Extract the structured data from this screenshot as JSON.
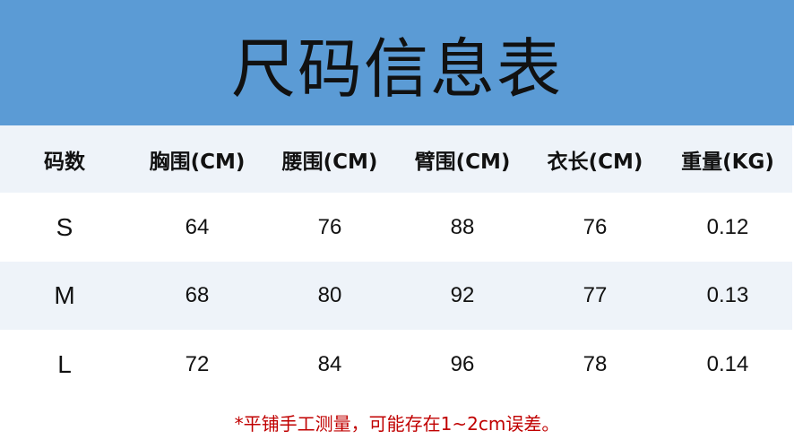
{
  "title": "尺码信息表",
  "colors": {
    "banner": "#5b9bd5",
    "stripe": "#eef3f9",
    "note": "#c00000"
  },
  "table": {
    "headers": [
      "码数",
      "胸围(CM)",
      "腰围(CM)",
      "臂围(CM)",
      "衣长(CM)",
      "重量(KG)"
    ],
    "rows": [
      [
        "S",
        "64",
        "76",
        "88",
        "76",
        "0.12"
      ],
      [
        "M",
        "68",
        "80",
        "92",
        "77",
        "0.13"
      ],
      [
        "L",
        "72",
        "84",
        "96",
        "78",
        "0.14"
      ]
    ]
  },
  "note": "*平铺手工测量，可能存在1~2cm误差。"
}
